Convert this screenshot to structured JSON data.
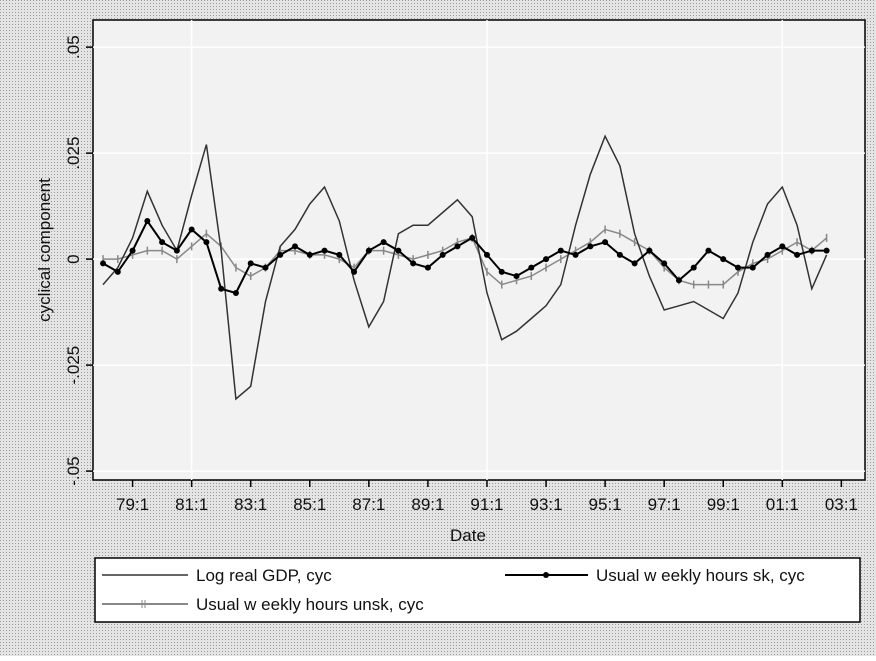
{
  "chart_data": {
    "type": "line",
    "x_label": "Date",
    "y_label": "cyclical component",
    "x": [
      1978.0,
      1978.5,
      1979.0,
      1979.5,
      1980.0,
      1980.5,
      1981.0,
      1981.5,
      1982.0,
      1982.5,
      1983.0,
      1983.5,
      1984.0,
      1984.5,
      1985.0,
      1985.5,
      1986.0,
      1986.5,
      1987.0,
      1987.5,
      1988.0,
      1988.5,
      1989.0,
      1989.5,
      1990.0,
      1990.5,
      1991.0,
      1991.5,
      1992.0,
      1992.5,
      1993.0,
      1993.5,
      1994.0,
      1994.5,
      1995.0,
      1995.5,
      1996.0,
      1996.5,
      1997.0,
      1997.5,
      1998.0,
      1998.5,
      1999.0,
      1999.5,
      2000.0,
      2000.5,
      2001.0,
      2001.5,
      2002.0,
      2002.5
    ],
    "series": [
      {
        "name": "Log real GDP, cyc",
        "color": "#333333",
        "marker": "none",
        "values": [
          -0.006,
          -0.002,
          0.005,
          0.016,
          0.008,
          0.002,
          0.015,
          0.027,
          0.002,
          -0.033,
          -0.03,
          -0.01,
          0.003,
          0.007,
          0.013,
          0.017,
          0.009,
          -0.005,
          -0.016,
          -0.01,
          0.006,
          0.008,
          0.008,
          0.011,
          0.014,
          0.01,
          -0.008,
          -0.019,
          -0.017,
          -0.014,
          -0.011,
          -0.006,
          0.008,
          0.02,
          0.029,
          0.022,
          0.006,
          -0.004,
          -0.012,
          -0.011,
          -0.01,
          -0.012,
          -0.014,
          -0.008,
          0.004,
          0.013,
          0.017,
          0.008,
          -0.007,
          0.001
        ]
      },
      {
        "name": "Usual w eekly hours sk, cyc",
        "color": "#000000",
        "marker": "dot",
        "values": [
          -0.001,
          -0.003,
          0.002,
          0.009,
          0.004,
          0.002,
          0.007,
          0.004,
          -0.007,
          -0.008,
          -0.001,
          -0.002,
          0.001,
          0.003,
          0.001,
          0.002,
          0.001,
          -0.003,
          0.002,
          0.004,
          0.002,
          -0.001,
          -0.002,
          0.001,
          0.003,
          0.005,
          0.001,
          -0.003,
          -0.004,
          -0.002,
          0,
          0.002,
          0.001,
          0.003,
          0.004,
          0.001,
          -0.001,
          0.002,
          -0.001,
          -0.005,
          -0.002,
          0.002,
          0,
          -0.002,
          -0.002,
          0.001,
          0.003,
          0.001,
          0.002,
          0.002
        ]
      },
      {
        "name": "Usual w eekly hours unsk, cyc",
        "color": "#888888",
        "marker": "cross",
        "values": [
          0,
          0,
          0.001,
          0.002,
          0.002,
          0,
          0.003,
          0.006,
          0.003,
          -0.002,
          -0.004,
          -0.002,
          0.002,
          0.002,
          0.001,
          0.001,
          0,
          -0.002,
          0.002,
          0.002,
          0.001,
          0,
          0.001,
          0.002,
          0.004,
          0.005,
          -0.003,
          -0.006,
          -0.005,
          -0.004,
          -0.002,
          0,
          0.002,
          0.004,
          0.007,
          0.006,
          0.004,
          0.002,
          -0.002,
          -0.005,
          -0.006,
          -0.006,
          -0.006,
          -0.003,
          -0.001,
          0,
          0.002,
          0.004,
          0.002,
          0.005
        ]
      }
    ],
    "xlim": [
      1977.66,
      2003.8
    ],
    "xticks": [
      {
        "value": 1979,
        "label": "79:1"
      },
      {
        "value": 1981,
        "label": "81:1"
      },
      {
        "value": 1983,
        "label": "83:1"
      },
      {
        "value": 1985,
        "label": "85:1"
      },
      {
        "value": 1987,
        "label": "87:1"
      },
      {
        "value": 1989,
        "label": "89:1"
      },
      {
        "value": 1991,
        "label": "91:1"
      },
      {
        "value": 1993,
        "label": "93:1"
      },
      {
        "value": 1995,
        "label": "95:1"
      },
      {
        "value": 1997,
        "label": "97:1"
      },
      {
        "value": 1999,
        "label": "99:1"
      },
      {
        "value": 2001,
        "label": "01:1"
      },
      {
        "value": 2003,
        "label": "03:1"
      }
    ],
    "ylim": [
      -0.0521,
      0.0564
    ],
    "yticks": [
      {
        "value": -0.05,
        "label": "-.05"
      },
      {
        "value": -0.025,
        "label": "-.025"
      },
      0,
      {
        "value": 0.025,
        "label": ".025"
      },
      {
        "value": 0.05,
        "label": ".05"
      }
    ],
    "grid": true
  }
}
